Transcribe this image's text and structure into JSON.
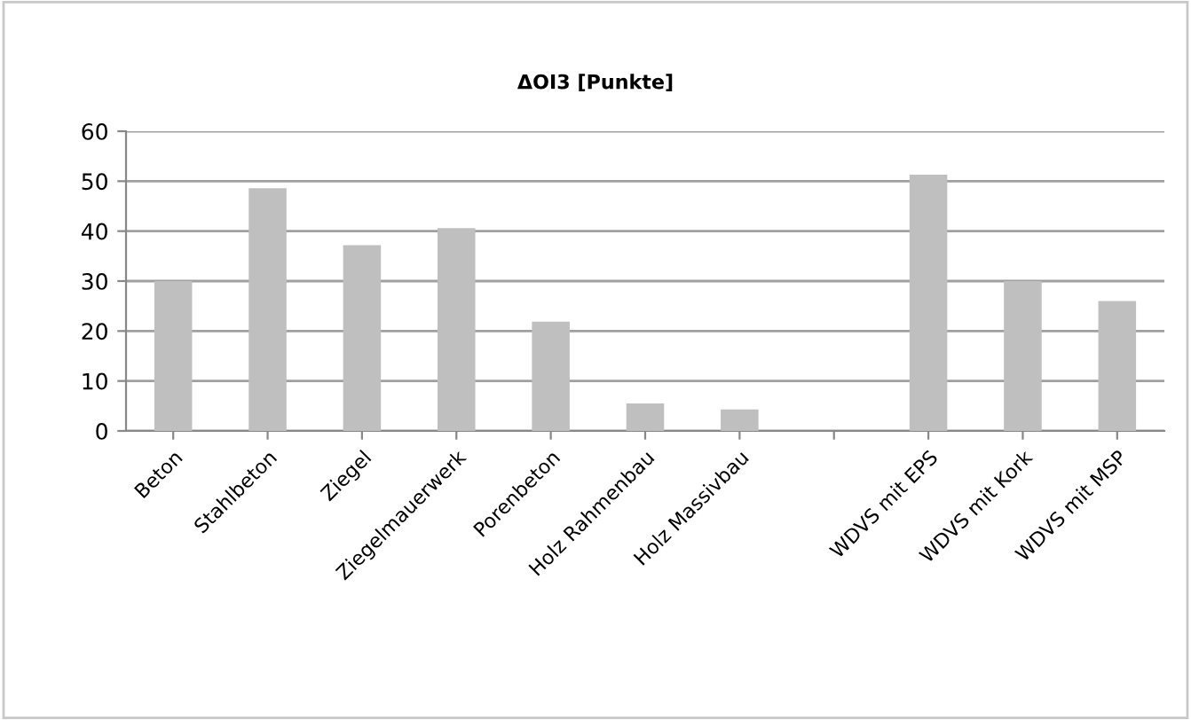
{
  "chart_data": {
    "type": "bar",
    "title": "ΔOI3 [Punkte]",
    "categories": [
      "Beton",
      "Stahlbeton",
      "Ziegel",
      "Ziegelmauerwerk",
      "Porenbeton",
      "Holz Rahmenbau",
      "Holz Massivbau",
      null,
      "WDVS mit EPS",
      "WDVS mit Kork",
      "WDVS mit MSP"
    ],
    "values": [
      30,
      48.6,
      37.2,
      40.6,
      21.9,
      5.5,
      4.3,
      null,
      51.3,
      30,
      26
    ],
    "color": "#bfbfbf",
    "ylim": [
      0,
      60
    ],
    "yticks": [
      0,
      10,
      20,
      30,
      40,
      50,
      60
    ],
    "grid": "y"
  }
}
